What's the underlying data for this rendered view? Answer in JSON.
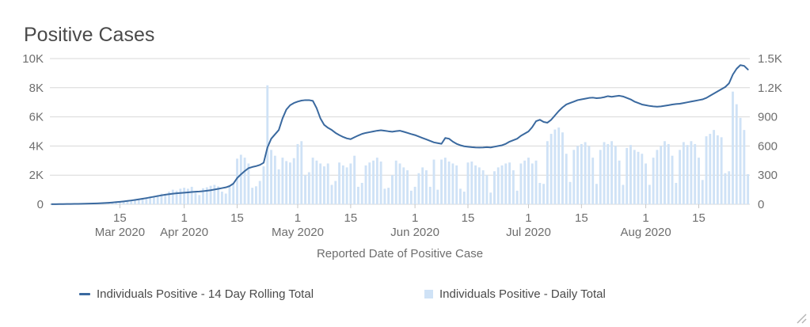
{
  "title": "Positive Cases",
  "x_axis_title": "Reported Date of Positive Case",
  "legend": {
    "items": [
      {
        "label": "Individuals Positive - 14 Day Rolling Total",
        "marker": "line",
        "color": "#3a699f"
      },
      {
        "label": "Individuals Positive - Daily Total",
        "marker": "square",
        "color": "#cfe2f6"
      }
    ]
  },
  "icons": {
    "resize_grip": "diagonal-resize-lines"
  },
  "colors": {
    "line": "#3a699f",
    "bar": "#cfe2f6",
    "grid": "#d8d8d8",
    "tick": "#c6c6c6",
    "axis_text": "#6e6e6e",
    "title_text": "#4a4a4a"
  },
  "chart_data": {
    "type": "mixed",
    "subtypes": [
      "line",
      "bar"
    ],
    "title": "Positive Cases",
    "xlabel": "Reported Date of Positive Case",
    "grid": "horizontal",
    "legend_position": "bottom",
    "x": {
      "n_days": 185,
      "ticks": [
        {
          "i": 18,
          "day": "15",
          "month": "Mar 2020"
        },
        {
          "i": 35,
          "day": "1",
          "month": "Apr 2020"
        },
        {
          "i": 49,
          "day": "15",
          "month": ""
        },
        {
          "i": 65,
          "day": "1",
          "month": "May 2020"
        },
        {
          "i": 79,
          "day": "15",
          "month": ""
        },
        {
          "i": 96,
          "day": "1",
          "month": "Jun 2020"
        },
        {
          "i": 110,
          "day": "15",
          "month": ""
        },
        {
          "i": 126,
          "day": "1",
          "month": "Jul 2020"
        },
        {
          "i": 140,
          "day": "15",
          "month": ""
        },
        {
          "i": 157,
          "day": "1",
          "month": "Aug 2020"
        },
        {
          "i": 171,
          "day": "15",
          "month": ""
        }
      ]
    },
    "y_left": {
      "max": 10000,
      "tick_values": [
        0,
        2000,
        4000,
        6000,
        8000,
        10000
      ],
      "tick_labels": [
        "0",
        "2K",
        "4K",
        "6K",
        "8K",
        "10K"
      ]
    },
    "y_right": {
      "max": 1500,
      "tick_values": [
        0,
        300,
        600,
        900,
        1200,
        1500
      ],
      "tick_labels": [
        "0",
        "300",
        "600",
        "900",
        "1.2K",
        "1.5K"
      ]
    },
    "series": [
      {
        "name": "Individuals Positive - 14 Day Rolling Total",
        "type": "line",
        "axis": "left",
        "color": "#3a699f",
        "values": [
          8,
          10,
          13,
          16,
          18,
          20,
          24,
          28,
          33,
          39,
          46,
          54,
          63,
          74,
          88,
          105,
          125,
          148,
          172,
          200,
          230,
          262,
          298,
          338,
          380,
          425,
          472,
          520,
          568,
          615,
          658,
          695,
          725,
          752,
          772,
          795,
          815,
          840,
          860,
          875,
          900,
          930,
          965,
          1010,
          1060,
          1110,
          1160,
          1250,
          1420,
          1800,
          2050,
          2280,
          2480,
          2560,
          2620,
          2700,
          2850,
          3900,
          4500,
          4800,
          5100,
          5900,
          6500,
          6800,
          6950,
          7050,
          7120,
          7150,
          7150,
          7100,
          6600,
          5900,
          5450,
          5250,
          5100,
          4900,
          4750,
          4620,
          4520,
          4470,
          4600,
          4720,
          4830,
          4900,
          4950,
          5000,
          5050,
          5080,
          5050,
          5010,
          4980,
          5020,
          5050,
          4980,
          4900,
          4820,
          4750,
          4650,
          4550,
          4450,
          4350,
          4250,
          4200,
          4150,
          4550,
          4500,
          4300,
          4150,
          4050,
          3980,
          3950,
          3920,
          3900,
          3890,
          3900,
          3920,
          3900,
          3950,
          4000,
          4050,
          4150,
          4300,
          4400,
          4500,
          4700,
          4850,
          5000,
          5300,
          5700,
          5800,
          5650,
          5600,
          5800,
          6100,
          6400,
          6650,
          6850,
          6950,
          7050,
          7150,
          7200,
          7250,
          7300,
          7320,
          7280,
          7300,
          7350,
          7420,
          7380,
          7420,
          7450,
          7400,
          7300,
          7200,
          7050,
          6950,
          6850,
          6800,
          6750,
          6720,
          6700,
          6720,
          6760,
          6800,
          6850,
          6880,
          6900,
          6950,
          7000,
          7050,
          7100,
          7150,
          7200,
          7300,
          7450,
          7600,
          7750,
          7900,
          8050,
          8300,
          8900,
          9300,
          9550,
          9500,
          9250
        ]
      },
      {
        "name": "Individuals Positive - Daily Total",
        "type": "bar",
        "axis": "right",
        "color": "#cfe2f6",
        "values": [
          2,
          1,
          2,
          3,
          2,
          3,
          3,
          5,
          4,
          6,
          8,
          7,
          10,
          12,
          15,
          14,
          18,
          22,
          20,
          28,
          35,
          40,
          48,
          55,
          50,
          65,
          80,
          75,
          95,
          110,
          105,
          130,
          150,
          140,
          160,
          170,
          160,
          180,
          120,
          95,
          165,
          175,
          190,
          200,
          185,
          130,
          110,
          180,
          210,
          470,
          510,
          480,
          420,
          170,
          185,
          240,
          390,
          1225,
          560,
          500,
          360,
          480,
          445,
          430,
          475,
          620,
          650,
          300,
          330,
          480,
          450,
          420,
          390,
          420,
          200,
          240,
          430,
          400,
          380,
          420,
          500,
          180,
          220,
          400,
          430,
          450,
          480,
          440,
          160,
          170,
          300,
          450,
          420,
          380,
          350,
          140,
          180,
          320,
          380,
          350,
          180,
          460,
          150,
          460,
          480,
          440,
          420,
          400,
          160,
          130,
          430,
          440,
          400,
          380,
          350,
          300,
          120,
          340,
          380,
          400,
          420,
          430,
          350,
          140,
          420,
          450,
          480,
          420,
          450,
          220,
          210,
          650,
          725,
          770,
          790,
          740,
          520,
          230,
          560,
          600,
          620,
          640,
          600,
          480,
          210,
          560,
          640,
          620,
          650,
          600,
          450,
          200,
          580,
          610,
          560,
          540,
          520,
          420,
          200,
          480,
          560,
          600,
          650,
          620,
          500,
          220,
          560,
          640,
          610,
          650,
          620,
          480,
          250,
          700,
          725,
          765,
          710,
          690,
          320,
          340,
          1160,
          1030,
          890,
          765,
          310
        ]
      }
    ]
  }
}
